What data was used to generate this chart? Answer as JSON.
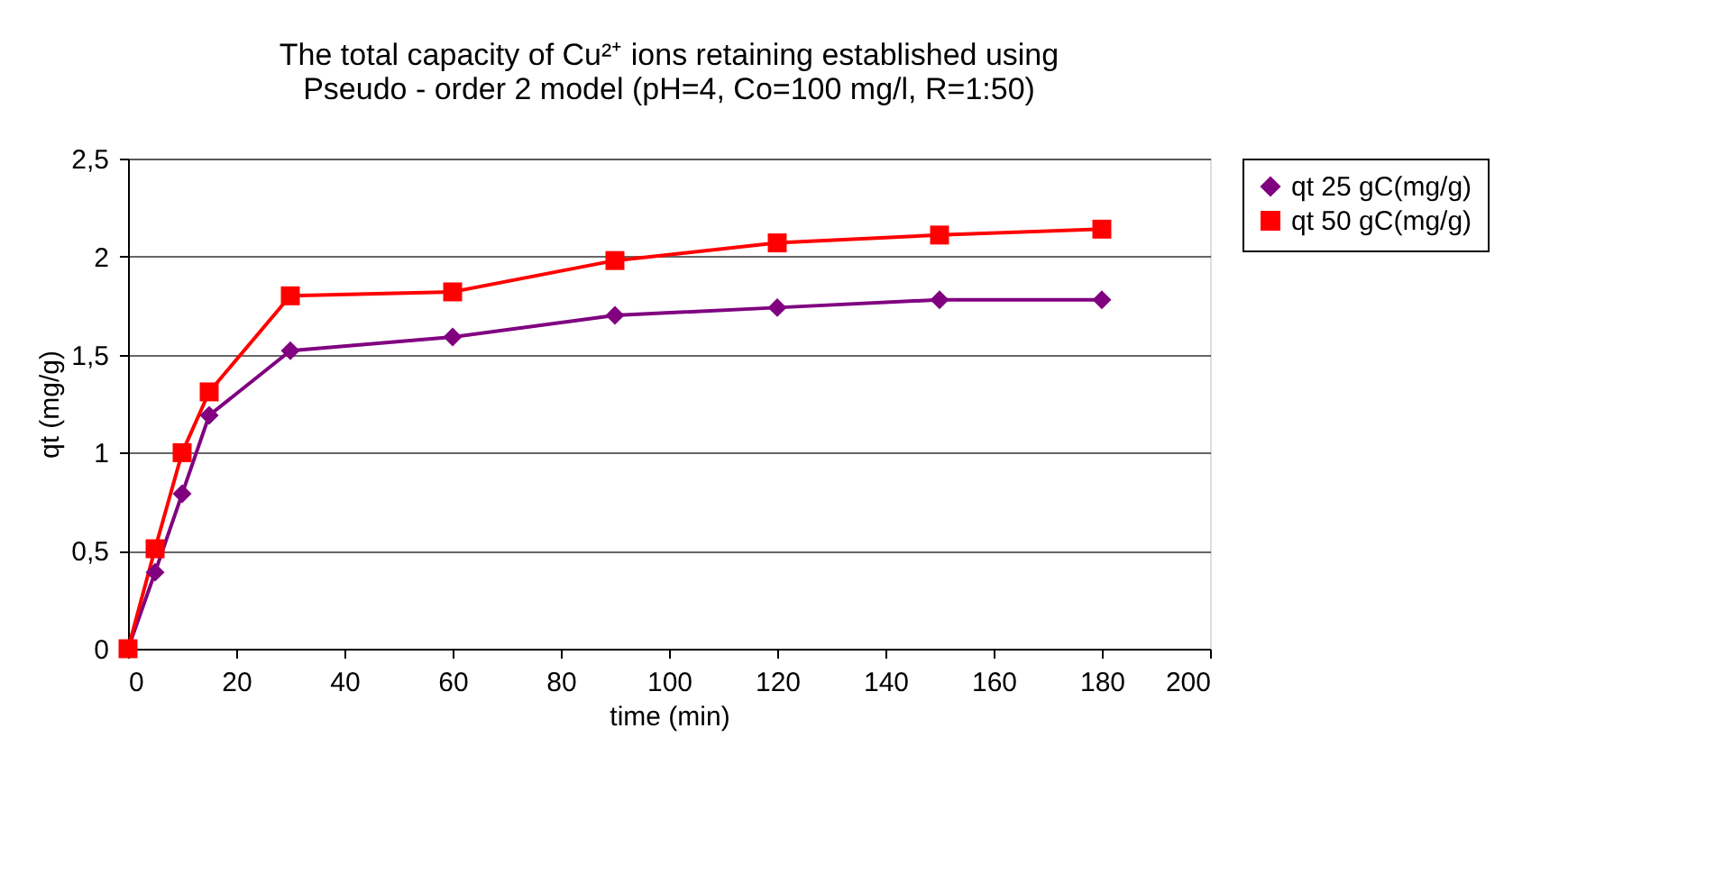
{
  "chart_data": {
    "type": "line",
    "title": "The total capacity of Cu²⁺ ions retaining established using Pseudo - order 2 model (pH=4, Co=100 mg/l, R=1:50)",
    "xlabel": "time (min)",
    "ylabel": "qt (mg/g)",
    "x": [
      0,
      5,
      10,
      15,
      30,
      60,
      90,
      120,
      150,
      180
    ],
    "series": [
      {
        "name": "qt 25 gC(mg/g)",
        "color": "#800080",
        "marker": "diamond",
        "values": [
          0,
          0.39,
          0.79,
          1.19,
          1.52,
          1.59,
          1.7,
          1.74,
          1.78,
          1.78
        ]
      },
      {
        "name": "qt 50 gC(mg/g)",
        "color": "#ff0000",
        "marker": "square",
        "values": [
          0,
          0.51,
          1.0,
          1.31,
          1.8,
          1.82,
          1.98,
          2.07,
          2.11,
          2.14
        ]
      }
    ],
    "xlim": [
      0,
      200
    ],
    "xticks": [
      0,
      20,
      40,
      60,
      80,
      100,
      120,
      140,
      160,
      180,
      200
    ],
    "ylim": [
      0,
      2.5
    ],
    "yticks": [
      0,
      {
        "value": 0.5,
        "label": "0,5"
      },
      1,
      {
        "value": 1.5,
        "label": "1,5"
      },
      2,
      {
        "value": 2.5,
        "label": "2,5"
      }
    ],
    "grid": "y",
    "legend": "right",
    "line_style": "solid"
  }
}
